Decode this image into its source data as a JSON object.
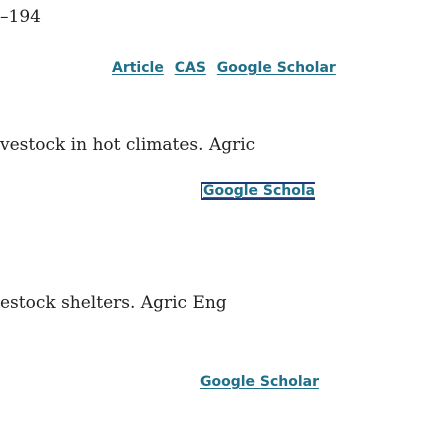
{
  "refs": [
    {
      "text": "–194",
      "links": []
    },
    {
      "text": "",
      "links": [
        "Article",
        "CAS",
        "Google Scholar"
      ]
    },
    {
      "text": "vestock in hot climates. Agric",
      "links": [
        "Google Scholar"
      ]
    },
    {
      "text": "estock shelters. Agric Eng",
      "links": [
        "Google Scholar"
      ]
    }
  ],
  "link_color": "#1f6f8b",
  "focus_color": "#1a3a7a"
}
